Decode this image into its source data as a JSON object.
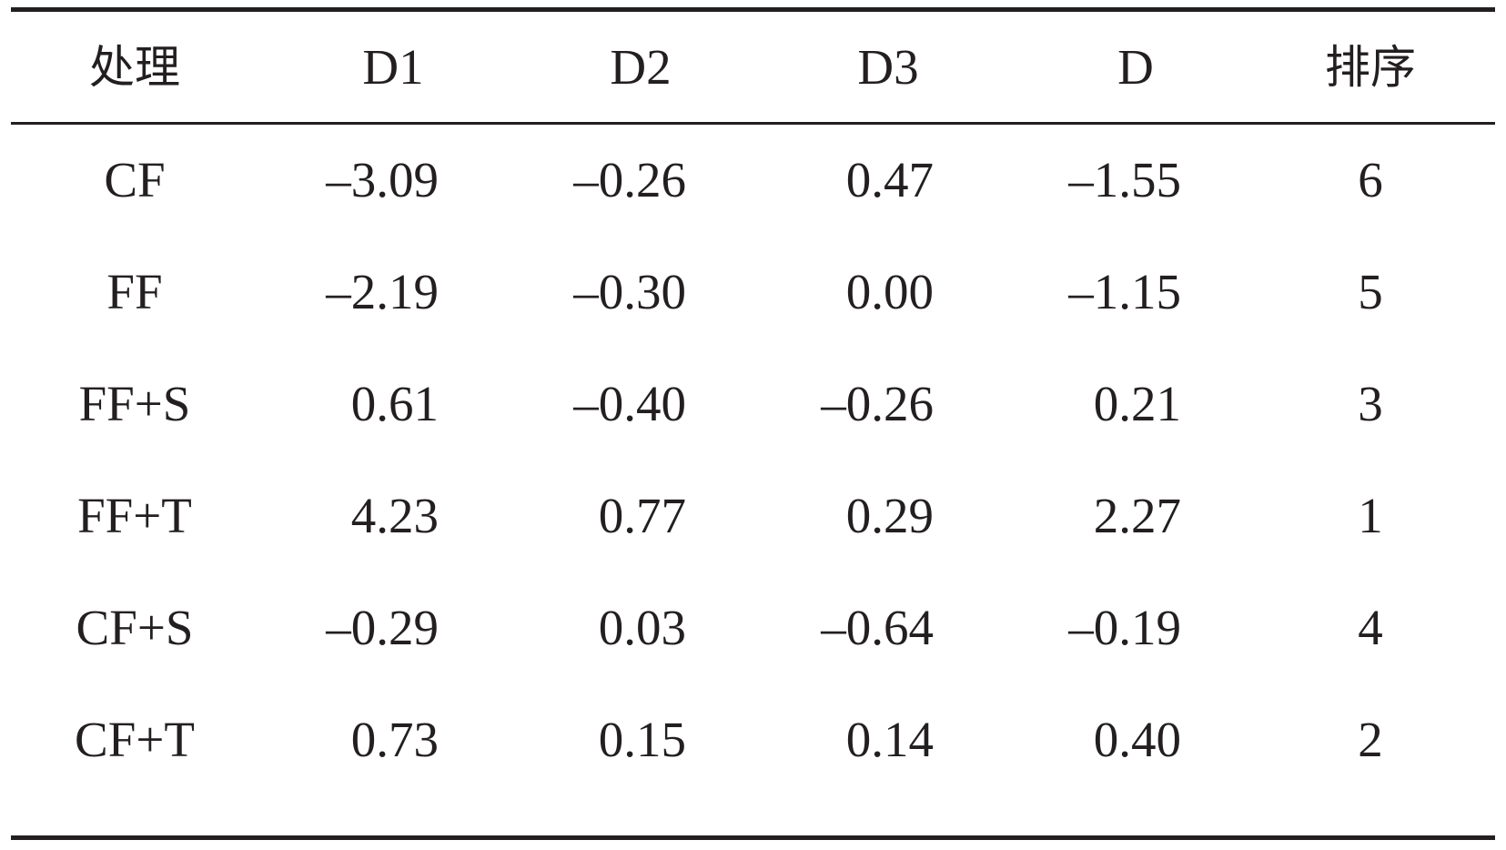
{
  "table": {
    "headers": [
      "处理",
      "D1",
      "D2",
      "D3",
      "D",
      "排序"
    ],
    "rows": [
      [
        "CF",
        "–3.09",
        "–0.26",
        "0.47",
        "–1.55",
        "6"
      ],
      [
        "FF",
        "–2.19",
        "–0.30",
        "0.00",
        "–1.15",
        "5"
      ],
      [
        "FF+S",
        "0.61",
        "–0.40",
        "–0.26",
        "0.21",
        "3"
      ],
      [
        "FF+T",
        "4.23",
        "0.77",
        "0.29",
        "2.27",
        "1"
      ],
      [
        "CF+S",
        "–0.29",
        "0.03",
        "–0.64",
        "–0.19",
        "4"
      ],
      [
        "CF+T",
        "0.73",
        "0.15",
        "0.14",
        "0.40",
        "2"
      ]
    ]
  }
}
